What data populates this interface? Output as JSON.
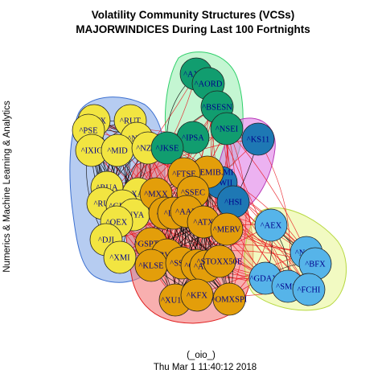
{
  "title_lines": [
    "Volatility Community Structures (VCSs)",
    "MAJORWINDICES During Last 100 Fortnights"
  ],
  "y_axis_label": "Numerics & Machine Learning & Analytics",
  "footer": {
    "line1": "(_oio_)",
    "line2": "Thu Mar  1 11:40:12 2018"
  },
  "colors": {
    "yellow_node": "#f2e541",
    "orange_node": "#e39e0a",
    "green_node": "#119d6f",
    "blue_node": "#1e78b4",
    "lightblue_node": "#56b4e9",
    "hull_blue": "#7aa3e5",
    "hull_green": "#9df0b4",
    "hull_red": "#f47a7a",
    "hull_magenta": "#e07ee8",
    "hull_lime": "#eaf79a",
    "edge_within": "#000000",
    "edge_between": "#e8141b",
    "label_text": "#00008b"
  },
  "communities": [
    {
      "id": "yellow",
      "color_key": "yellow_node",
      "nodes": [
        "^NWX",
        "^RUT",
        "^PSE",
        "^NBI",
        "^IXIC",
        "^MID",
        "^NZ50",
        "^RUA",
        "^XAX",
        "^RUI",
        "^GKPC",
        "^NYA",
        "^OEX",
        "^DJI",
        "^XMI"
      ]
    },
    {
      "id": "green",
      "color_key": "green_node",
      "nodes": [
        "^AXJO",
        "^AORD",
        "^BSESN",
        "^IPSA",
        "^NSEI",
        "^JKSE"
      ]
    },
    {
      "id": "blue",
      "color_key": "blue_node",
      "nodes": [
        "^KS11",
        "^TWII",
        "^HSI"
      ]
    },
    {
      "id": "orange",
      "color_key": "orange_node",
      "nodes": [
        "^FTSEMIB.MI",
        "^FTSE",
        "^MXX",
        "^SSEC",
        "^STI",
        "^DJA",
        "^AAU",
        "^ATX",
        "^MERV",
        "^GSPTSE",
        "^BVSP",
        "^KLSE",
        "^SSMI",
        "^GSPC",
        "^ATSE",
        "^STOXX50E",
        "^XU100",
        "^KFX",
        "^OMXSPI"
      ]
    },
    {
      "id": "lightblue",
      "color_key": "lightblue_node",
      "nodes": [
        "^AEX",
        "^N100",
        "^BFX",
        "^GDAXI",
        "^SMSI",
        "^FCHI"
      ]
    }
  ]
}
